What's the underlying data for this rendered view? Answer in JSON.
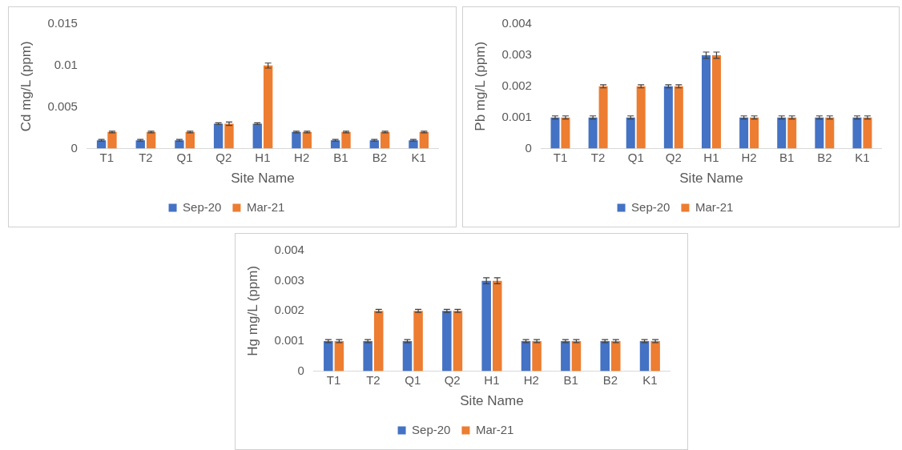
{
  "chart_data": [
    {
      "type": "bar",
      "xlabel": "Site Name",
      "ylabel": "Cd mg/L (ppm)",
      "categories": [
        "T1",
        "T2",
        "Q1",
        "Q2",
        "H1",
        "H2",
        "B1",
        "B2",
        "K1"
      ],
      "series": [
        {
          "name": "Sep-20",
          "color": "#4472c4",
          "values": [
            0.001,
            0.001,
            0.001,
            0.003,
            0.003,
            0.002,
            0.001,
            0.001,
            0.001
          ],
          "errors": [
            0.0001,
            0.0001,
            0.0001,
            0.0001,
            0.0001,
            0.0001,
            0.0001,
            0.0001,
            0.0001
          ]
        },
        {
          "name": "Mar-21",
          "color": "#ed7d31",
          "values": [
            0.002,
            0.002,
            0.002,
            0.003,
            0.01,
            0.002,
            0.002,
            0.002,
            0.002
          ],
          "errors": [
            0.0001,
            0.0001,
            0.0001,
            0.0002,
            0.0003,
            0.0001,
            0.0001,
            0.0001,
            0.0001
          ]
        }
      ],
      "ylim": [
        0,
        0.015
      ],
      "yticks": [
        0,
        0.005,
        0.01,
        0.015
      ],
      "grid": false,
      "legend": "bottom"
    },
    {
      "type": "bar",
      "xlabel": "Site Name",
      "ylabel": "Pb mg/L (ppm)",
      "categories": [
        "T1",
        "T2",
        "Q1",
        "Q2",
        "H1",
        "H2",
        "B1",
        "B2",
        "K1"
      ],
      "series": [
        {
          "name": "Sep-20",
          "color": "#4472c4",
          "values": [
            0.001,
            0.001,
            0.001,
            0.002,
            0.003,
            0.001,
            0.001,
            0.001,
            0.001
          ],
          "errors": [
            5e-05,
            5e-05,
            5e-05,
            5e-05,
            0.0001,
            5e-05,
            5e-05,
            5e-05,
            5e-05
          ]
        },
        {
          "name": "Mar-21",
          "color": "#ed7d31",
          "values": [
            0.001,
            0.002,
            0.002,
            0.002,
            0.003,
            0.001,
            0.001,
            0.001,
            0.001
          ],
          "errors": [
            5e-05,
            5e-05,
            5e-05,
            5e-05,
            0.0001,
            5e-05,
            5e-05,
            5e-05,
            5e-05
          ]
        }
      ],
      "ylim": [
        0,
        0.004
      ],
      "yticks": [
        0,
        0.001,
        0.002,
        0.003,
        0.004
      ],
      "grid": false,
      "legend": "bottom"
    },
    {
      "type": "bar",
      "xlabel": "Site Name",
      "ylabel": "Hg mg/L (ppm)",
      "categories": [
        "T1",
        "T2",
        "Q1",
        "Q2",
        "H1",
        "H2",
        "B1",
        "B2",
        "K1"
      ],
      "series": [
        {
          "name": "Sep-20",
          "color": "#4472c4",
          "values": [
            0.001,
            0.001,
            0.001,
            0.002,
            0.003,
            0.001,
            0.001,
            0.001,
            0.001
          ],
          "errors": [
            5e-05,
            5e-05,
            5e-05,
            5e-05,
            0.0001,
            5e-05,
            5e-05,
            5e-05,
            5e-05
          ]
        },
        {
          "name": "Mar-21",
          "color": "#ed7d31",
          "values": [
            0.001,
            0.002,
            0.002,
            0.002,
            0.003,
            0.001,
            0.001,
            0.001,
            0.001
          ],
          "errors": [
            5e-05,
            5e-05,
            5e-05,
            5e-05,
            0.0001,
            5e-05,
            5e-05,
            5e-05,
            5e-05
          ]
        }
      ],
      "ylim": [
        0,
        0.004
      ],
      "yticks": [
        0,
        0.001,
        0.002,
        0.003,
        0.004
      ],
      "grid": false,
      "legend": "bottom"
    }
  ]
}
